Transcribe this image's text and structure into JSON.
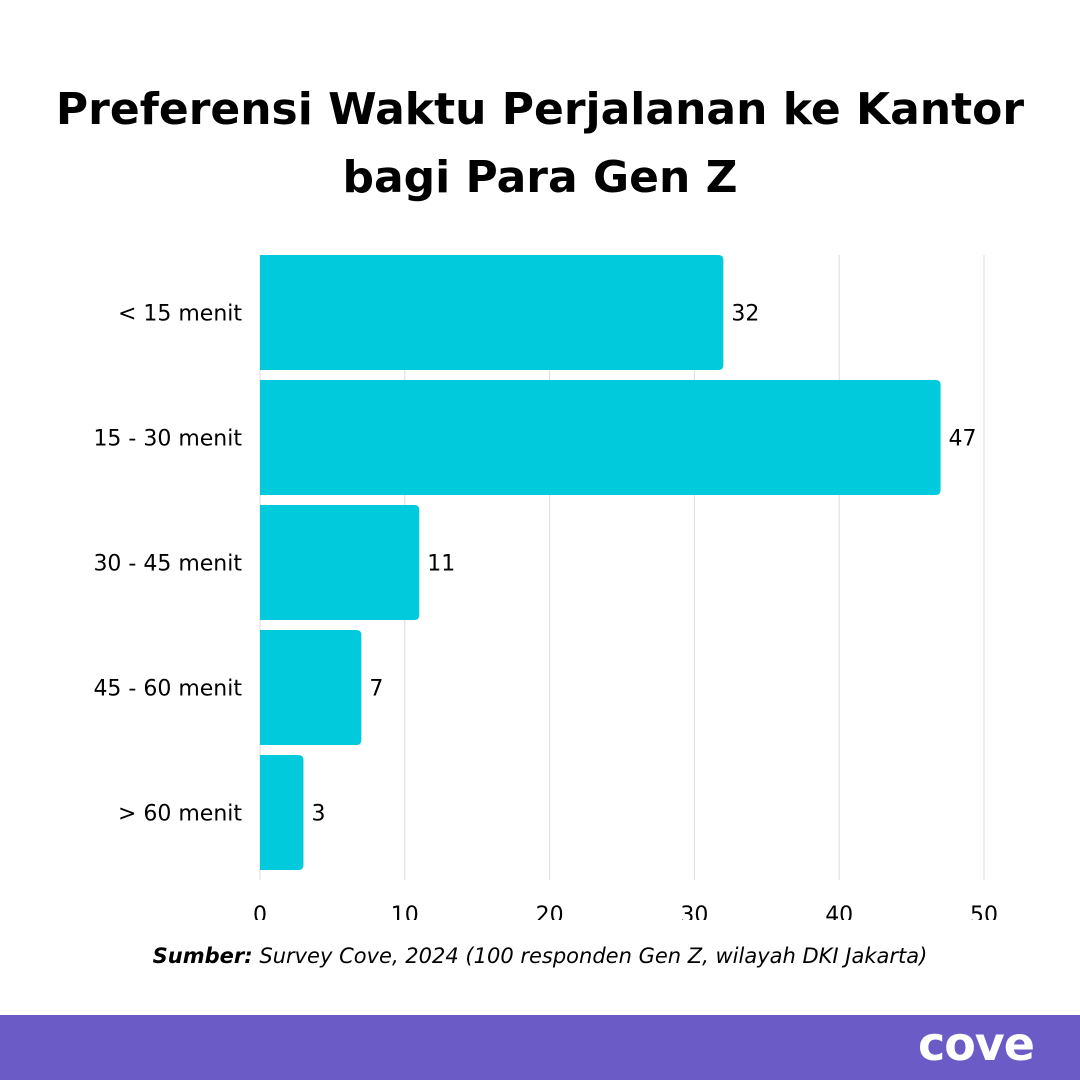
{
  "page": {
    "title": "Preferensi Waktu Perjalanan ke Kantor bagi Para Gen Z",
    "source_label": "Sumber:",
    "source_text": "Survey Cove, 2024 (100 responden Gen Z, wilayah DKI Jakarta)",
    "brand": "cove"
  },
  "colors": {
    "bar": "#00CADB",
    "grid": "#dddddd",
    "footer": "#6a5bc6",
    "brand_text": "#ffffff"
  },
  "chart_data": {
    "type": "bar",
    "orientation": "horizontal",
    "categories": [
      "< 15 menit",
      "15 - 30 menit",
      "30 - 45 menit",
      "45 - 60 menit",
      "> 60 menit"
    ],
    "values": [
      32,
      47,
      11,
      7,
      3
    ],
    "xticks": [
      "0",
      "10",
      "20",
      "30",
      "40",
      "50"
    ],
    "xlim": [
      0,
      50
    ],
    "grid": true,
    "data_labels": true,
    "legend": "none"
  }
}
